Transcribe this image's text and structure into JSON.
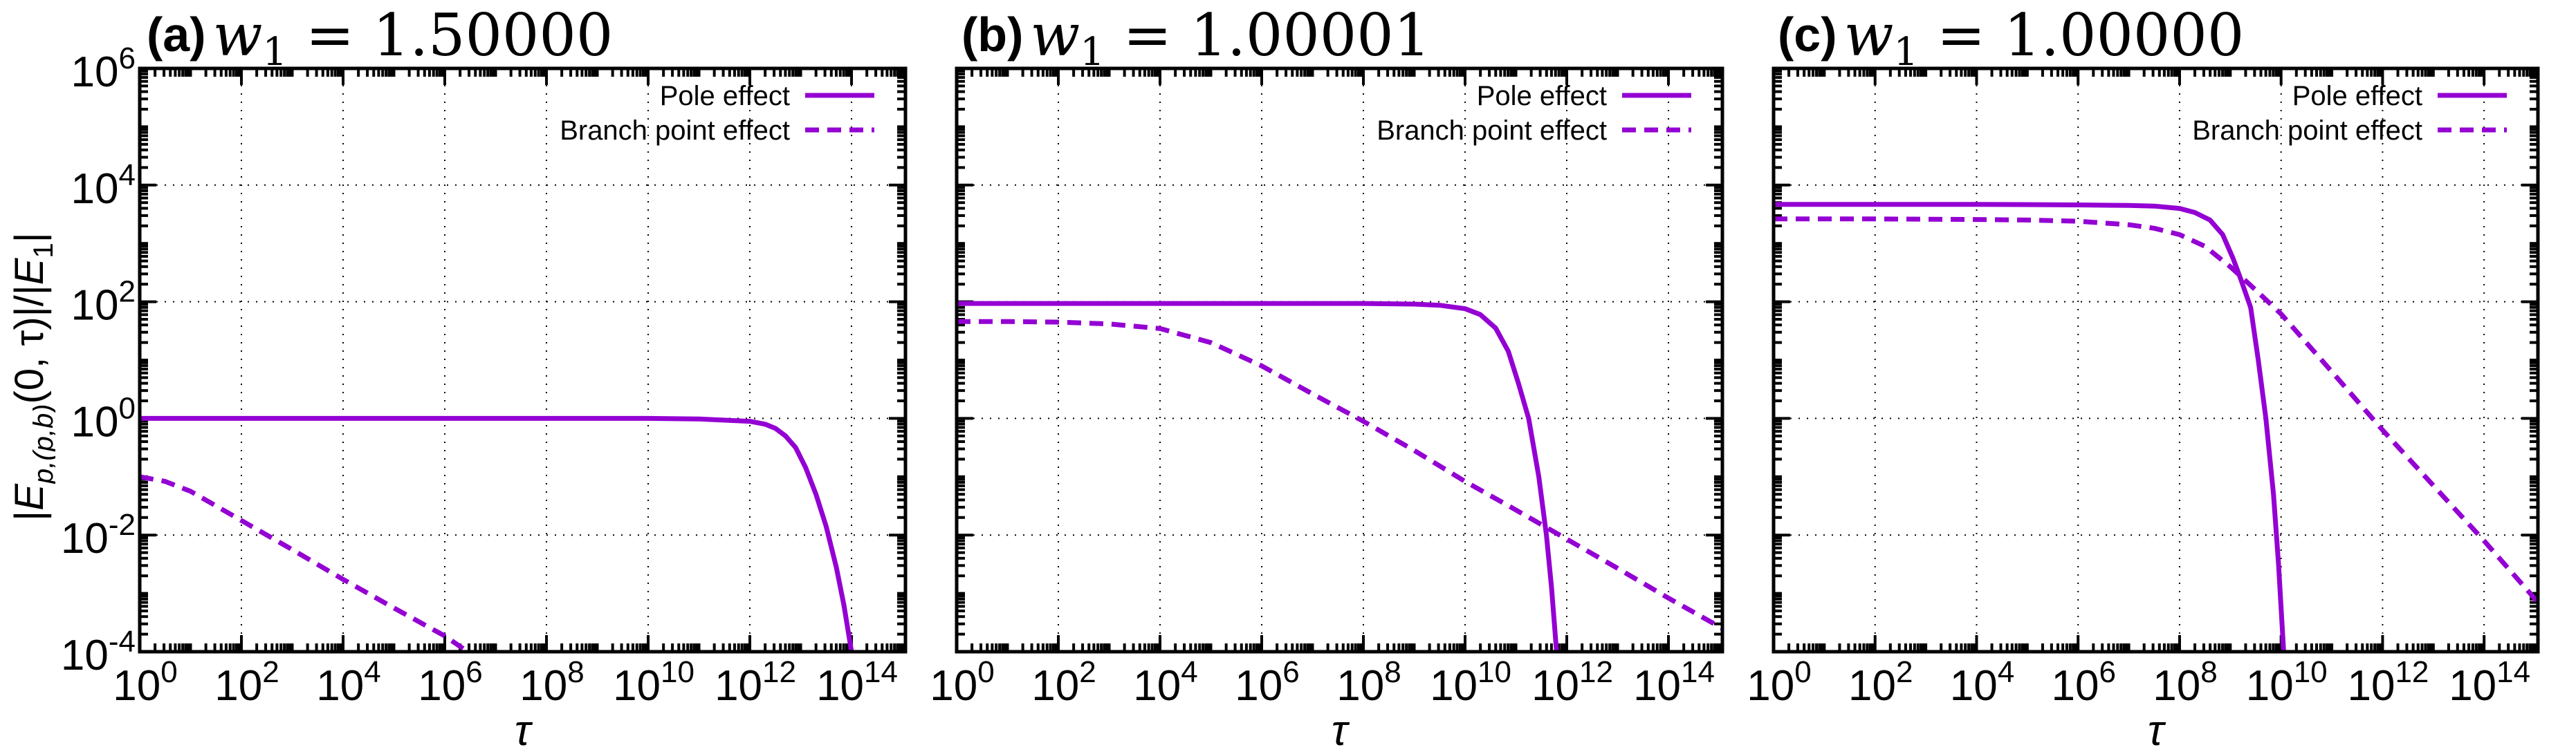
{
  "figure": {
    "ylabel": "|E_p,(p,b)(0,τ)|/|E_1|",
    "ylabel_parts": {
      "bar1": "|",
      "E": "E",
      "sub": "p,(p,b)",
      "rest": "(0, τ)|/|",
      "E2": "E",
      "sub2": "1",
      "end": "|"
    },
    "colors": {
      "series": "#9400D3",
      "axis": "#000000",
      "grid": "#000000"
    }
  },
  "chart_data": [
    {
      "type": "line",
      "panel": "a",
      "title": "(a) w1 = 1.50000",
      "title_tag": "(a)",
      "title_var": "w",
      "title_sub": "1",
      "title_value": "= 1.50000",
      "xlabel": "τ",
      "ylabel": "|E_p,(p,b)(0,τ)|/|E_1|",
      "xscale": "log",
      "yscale": "log",
      "xlim": [
        1,
        1150000000000000.0
      ],
      "ylim": [
        0.0001,
        1000000.0
      ],
      "xticks": [
        "10^0",
        "10^2",
        "10^4",
        "10^6",
        "10^8",
        "10^10",
        "10^12",
        "10^14"
      ],
      "yticks": [
        "10^-4",
        "10^-2",
        "10^0",
        "10^2",
        "10^4",
        "10^6"
      ],
      "show_ytick_labels": true,
      "grid": true,
      "legend": {
        "position": "upper right",
        "entries": [
          "Pole effect",
          "Branch point effect"
        ]
      },
      "series": [
        {
          "name": "Pole effect",
          "style": "solid",
          "log10_x": [
            0,
            2,
            4,
            6,
            8,
            10,
            11,
            12,
            12.3,
            12.5,
            12.7,
            12.9,
            13.1,
            13.3,
            13.5,
            13.7,
            13.85,
            14.0
          ],
          "log10_y": [
            0,
            0,
            0,
            0,
            0,
            0,
            -0.01,
            -0.05,
            -0.1,
            -0.17,
            -0.3,
            -0.5,
            -0.85,
            -1.3,
            -1.85,
            -2.55,
            -3.2,
            -4.0
          ]
        },
        {
          "name": "Branch point effect",
          "style": "dashed",
          "log10_x": [
            0,
            0.5,
            1,
            1.5,
            2,
            3,
            4,
            5,
            6,
            6.45
          ],
          "log10_y": [
            -1.0,
            -1.08,
            -1.25,
            -1.5,
            -1.75,
            -2.25,
            -2.76,
            -3.25,
            -3.73,
            -4.0
          ]
        }
      ]
    },
    {
      "type": "line",
      "panel": "b",
      "title": "(b) w1 = 1.00001",
      "title_tag": "(b)",
      "title_var": "w",
      "title_sub": "1",
      "title_value": "= 1.00001",
      "xlabel": "τ",
      "xscale": "log",
      "yscale": "log",
      "xlim": [
        1,
        1150000000000000.0
      ],
      "ylim": [
        0.0001,
        1000000.0
      ],
      "xticks": [
        "10^0",
        "10^2",
        "10^4",
        "10^6",
        "10^8",
        "10^10",
        "10^12",
        "10^14"
      ],
      "show_ytick_labels": false,
      "grid": true,
      "legend": {
        "position": "upper right",
        "entries": [
          "Pole effect",
          "Branch point effect"
        ]
      },
      "series": [
        {
          "name": "Pole effect",
          "style": "solid",
          "log10_x": [
            0,
            4,
            8,
            9,
            9.5,
            10,
            10.3,
            10.6,
            10.85,
            11.05,
            11.25,
            11.45,
            11.6,
            11.7,
            11.8
          ],
          "log10_y": [
            1.97,
            1.97,
            1.97,
            1.96,
            1.94,
            1.88,
            1.78,
            1.55,
            1.15,
            0.6,
            0.0,
            -1.0,
            -2.0,
            -2.9,
            -4.0
          ]
        },
        {
          "name": "Branch point effect",
          "style": "dashed",
          "log10_x": [
            0,
            1,
            2,
            3,
            4,
            5,
            6,
            7,
            8,
            9,
            10,
            11,
            12,
            13,
            14,
            15.06
          ],
          "log10_y": [
            1.66,
            1.66,
            1.65,
            1.62,
            1.54,
            1.3,
            0.9,
            0.42,
            -0.05,
            -0.55,
            -1.08,
            -1.57,
            -2.07,
            -2.57,
            -3.08,
            -3.6
          ]
        }
      ]
    },
    {
      "type": "line",
      "panel": "c",
      "title": "(c) w1 = 1.00000",
      "title_tag": "(c)",
      "title_var": "w",
      "title_sub": "1",
      "title_value": "= 1.00000",
      "xlabel": "τ",
      "xscale": "log",
      "yscale": "log",
      "xlim": [
        1,
        1150000000000000.0
      ],
      "ylim": [
        0.0001,
        1000000.0
      ],
      "xticks": [
        "10^0",
        "10^2",
        "10^4",
        "10^6",
        "10^8",
        "10^10",
        "10^12",
        "10^14"
      ],
      "show_ytick_labels": false,
      "grid": true,
      "legend": {
        "position": "upper right",
        "entries": [
          "Pole effect",
          "Branch point effect"
        ]
      },
      "series": [
        {
          "name": "Pole effect",
          "style": "solid",
          "log10_x": [
            0,
            4,
            6,
            7,
            7.5,
            8,
            8.3,
            8.6,
            8.85,
            9.05,
            9.2,
            9.4,
            9.55,
            9.7,
            9.85,
            9.95,
            10.05
          ],
          "log10_y": [
            3.67,
            3.67,
            3.66,
            3.65,
            3.64,
            3.6,
            3.53,
            3.4,
            3.15,
            2.75,
            2.4,
            1.9,
            1.0,
            0.0,
            -1.3,
            -2.5,
            -4.0
          ]
        },
        {
          "name": "Branch point effect",
          "style": "dashed",
          "log10_x": [
            0,
            2,
            4,
            5,
            6,
            7,
            7.5,
            8,
            8.5,
            9,
            9.5,
            10,
            11,
            12,
            13,
            14,
            15.06
          ],
          "log10_y": [
            3.42,
            3.42,
            3.41,
            3.4,
            3.38,
            3.32,
            3.26,
            3.15,
            2.95,
            2.6,
            2.2,
            1.79,
            0.8,
            -0.2,
            -1.15,
            -2.1,
            -3.15
          ]
        }
      ]
    }
  ]
}
